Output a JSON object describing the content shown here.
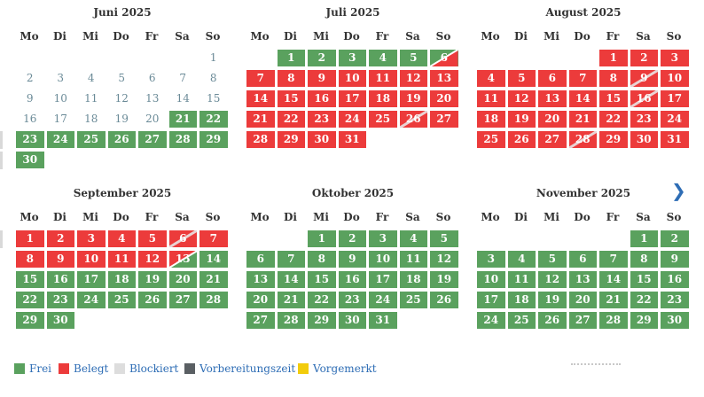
{
  "weekdays": [
    "Mo",
    "Di",
    "Mi",
    "Do",
    "Fr",
    "Sa",
    "So"
  ],
  "colors": {
    "frei": "#5aa15e",
    "belegt": "#ec3b3b",
    "blockiert": "#dddddd",
    "vorbereitungszeit": "#5a5f63",
    "vorgemerkt": "#f2cc0c"
  },
  "next_arrow": "❯",
  "months": [
    {
      "title": "Juni 2025",
      "first_weekday": 6,
      "days": [
        {
          "d": 1,
          "s": "past"
        },
        {
          "d": 2,
          "s": "past"
        },
        {
          "d": 3,
          "s": "past"
        },
        {
          "d": 4,
          "s": "past"
        },
        {
          "d": 5,
          "s": "past"
        },
        {
          "d": 6,
          "s": "past"
        },
        {
          "d": 7,
          "s": "past"
        },
        {
          "d": 8,
          "s": "past"
        },
        {
          "d": 9,
          "s": "past"
        },
        {
          "d": 10,
          "s": "past"
        },
        {
          "d": 11,
          "s": "past"
        },
        {
          "d": 12,
          "s": "past"
        },
        {
          "d": 13,
          "s": "past"
        },
        {
          "d": 14,
          "s": "past"
        },
        {
          "d": 15,
          "s": "past"
        },
        {
          "d": 16,
          "s": "past"
        },
        {
          "d": 17,
          "s": "past"
        },
        {
          "d": 18,
          "s": "past"
        },
        {
          "d": 19,
          "s": "past"
        },
        {
          "d": 20,
          "s": "past"
        },
        {
          "d": 21,
          "s": "frei"
        },
        {
          "d": 22,
          "s": "frei"
        },
        {
          "d": 23,
          "s": "frei"
        },
        {
          "d": 24,
          "s": "frei"
        },
        {
          "d": 25,
          "s": "frei"
        },
        {
          "d": 26,
          "s": "frei"
        },
        {
          "d": 27,
          "s": "frei"
        },
        {
          "d": 28,
          "s": "frei"
        },
        {
          "d": 29,
          "s": "frei"
        },
        {
          "d": 30,
          "s": "frei"
        }
      ]
    },
    {
      "title": "Juli 2025",
      "first_weekday": 1,
      "days": [
        {
          "d": 1,
          "s": "frei"
        },
        {
          "d": 2,
          "s": "frei"
        },
        {
          "d": 3,
          "s": "frei"
        },
        {
          "d": 4,
          "s": "frei"
        },
        {
          "d": 5,
          "s": "frei"
        },
        {
          "d": 6,
          "s": "frei-belegt"
        },
        {
          "d": 7,
          "s": "belegt"
        },
        {
          "d": 8,
          "s": "belegt"
        },
        {
          "d": 9,
          "s": "belegt"
        },
        {
          "d": 10,
          "s": "belegt"
        },
        {
          "d": 11,
          "s": "belegt"
        },
        {
          "d": 12,
          "s": "belegt"
        },
        {
          "d": 13,
          "s": "belegt"
        },
        {
          "d": 14,
          "s": "belegt"
        },
        {
          "d": 15,
          "s": "belegt"
        },
        {
          "d": 16,
          "s": "belegt"
        },
        {
          "d": 17,
          "s": "belegt"
        },
        {
          "d": 18,
          "s": "belegt"
        },
        {
          "d": 19,
          "s": "belegt"
        },
        {
          "d": 20,
          "s": "belegt"
        },
        {
          "d": 21,
          "s": "belegt"
        },
        {
          "d": 22,
          "s": "belegt"
        },
        {
          "d": 23,
          "s": "belegt"
        },
        {
          "d": 24,
          "s": "belegt"
        },
        {
          "d": 25,
          "s": "belegt"
        },
        {
          "d": 26,
          "s": "belegt-change"
        },
        {
          "d": 27,
          "s": "belegt"
        },
        {
          "d": 28,
          "s": "belegt"
        },
        {
          "d": 29,
          "s": "belegt"
        },
        {
          "d": 30,
          "s": "belegt"
        },
        {
          "d": 31,
          "s": "belegt"
        }
      ]
    },
    {
      "title": "August 2025",
      "first_weekday": 4,
      "days": [
        {
          "d": 1,
          "s": "belegt"
        },
        {
          "d": 2,
          "s": "belegt"
        },
        {
          "d": 3,
          "s": "belegt"
        },
        {
          "d": 4,
          "s": "belegt"
        },
        {
          "d": 5,
          "s": "belegt"
        },
        {
          "d": 6,
          "s": "belegt"
        },
        {
          "d": 7,
          "s": "belegt"
        },
        {
          "d": 8,
          "s": "belegt"
        },
        {
          "d": 9,
          "s": "belegt-change"
        },
        {
          "d": 10,
          "s": "belegt"
        },
        {
          "d": 11,
          "s": "belegt"
        },
        {
          "d": 12,
          "s": "belegt"
        },
        {
          "d": 13,
          "s": "belegt"
        },
        {
          "d": 14,
          "s": "belegt"
        },
        {
          "d": 15,
          "s": "belegt"
        },
        {
          "d": 16,
          "s": "belegt-change"
        },
        {
          "d": 17,
          "s": "belegt"
        },
        {
          "d": 18,
          "s": "belegt"
        },
        {
          "d": 19,
          "s": "belegt"
        },
        {
          "d": 20,
          "s": "belegt"
        },
        {
          "d": 21,
          "s": "belegt"
        },
        {
          "d": 22,
          "s": "belegt"
        },
        {
          "d": 23,
          "s": "belegt"
        },
        {
          "d": 24,
          "s": "belegt"
        },
        {
          "d": 25,
          "s": "belegt"
        },
        {
          "d": 26,
          "s": "belegt"
        },
        {
          "d": 27,
          "s": "belegt"
        },
        {
          "d": 28,
          "s": "belegt-change"
        },
        {
          "d": 29,
          "s": "belegt"
        },
        {
          "d": 30,
          "s": "belegt"
        },
        {
          "d": 31,
          "s": "belegt"
        }
      ]
    },
    {
      "title": "September 2025",
      "first_weekday": 0,
      "days": [
        {
          "d": 1,
          "s": "belegt"
        },
        {
          "d": 2,
          "s": "belegt"
        },
        {
          "d": 3,
          "s": "belegt"
        },
        {
          "d": 4,
          "s": "belegt"
        },
        {
          "d": 5,
          "s": "belegt"
        },
        {
          "d": 6,
          "s": "belegt-change"
        },
        {
          "d": 7,
          "s": "belegt"
        },
        {
          "d": 8,
          "s": "belegt"
        },
        {
          "d": 9,
          "s": "belegt"
        },
        {
          "d": 10,
          "s": "belegt"
        },
        {
          "d": 11,
          "s": "belegt"
        },
        {
          "d": 12,
          "s": "belegt"
        },
        {
          "d": 13,
          "s": "belegt-frei"
        },
        {
          "d": 14,
          "s": "frei"
        },
        {
          "d": 15,
          "s": "frei"
        },
        {
          "d": 16,
          "s": "frei"
        },
        {
          "d": 17,
          "s": "frei"
        },
        {
          "d": 18,
          "s": "frei"
        },
        {
          "d": 19,
          "s": "frei"
        },
        {
          "d": 20,
          "s": "frei"
        },
        {
          "d": 21,
          "s": "frei"
        },
        {
          "d": 22,
          "s": "frei"
        },
        {
          "d": 23,
          "s": "frei"
        },
        {
          "d": 24,
          "s": "frei"
        },
        {
          "d": 25,
          "s": "frei"
        },
        {
          "d": 26,
          "s": "frei"
        },
        {
          "d": 27,
          "s": "frei"
        },
        {
          "d": 28,
          "s": "frei"
        },
        {
          "d": 29,
          "s": "frei"
        },
        {
          "d": 30,
          "s": "frei"
        }
      ]
    },
    {
      "title": "Oktober 2025",
      "first_weekday": 2,
      "days": [
        {
          "d": 1,
          "s": "frei"
        },
        {
          "d": 2,
          "s": "frei"
        },
        {
          "d": 3,
          "s": "frei"
        },
        {
          "d": 4,
          "s": "frei"
        },
        {
          "d": 5,
          "s": "frei"
        },
        {
          "d": 6,
          "s": "frei"
        },
        {
          "d": 7,
          "s": "frei"
        },
        {
          "d": 8,
          "s": "frei"
        },
        {
          "d": 9,
          "s": "frei"
        },
        {
          "d": 10,
          "s": "frei"
        },
        {
          "d": 11,
          "s": "frei"
        },
        {
          "d": 12,
          "s": "frei"
        },
        {
          "d": 13,
          "s": "frei"
        },
        {
          "d": 14,
          "s": "frei"
        },
        {
          "d": 15,
          "s": "frei"
        },
        {
          "d": 16,
          "s": "frei"
        },
        {
          "d": 17,
          "s": "frei"
        },
        {
          "d": 18,
          "s": "frei"
        },
        {
          "d": 19,
          "s": "frei"
        },
        {
          "d": 20,
          "s": "frei"
        },
        {
          "d": 21,
          "s": "frei"
        },
        {
          "d": 22,
          "s": "frei"
        },
        {
          "d": 23,
          "s": "frei"
        },
        {
          "d": 24,
          "s": "frei"
        },
        {
          "d": 25,
          "s": "frei"
        },
        {
          "d": 26,
          "s": "frei"
        },
        {
          "d": 27,
          "s": "frei"
        },
        {
          "d": 28,
          "s": "frei"
        },
        {
          "d": 29,
          "s": "frei"
        },
        {
          "d": 30,
          "s": "frei"
        },
        {
          "d": 31,
          "s": "frei"
        }
      ]
    },
    {
      "title": "November 2025",
      "first_weekday": 5,
      "days": [
        {
          "d": 1,
          "s": "frei"
        },
        {
          "d": 2,
          "s": "frei"
        },
        {
          "d": 3,
          "s": "frei"
        },
        {
          "d": 4,
          "s": "frei"
        },
        {
          "d": 5,
          "s": "frei"
        },
        {
          "d": 6,
          "s": "frei"
        },
        {
          "d": 7,
          "s": "frei"
        },
        {
          "d": 8,
          "s": "frei"
        },
        {
          "d": 9,
          "s": "frei"
        },
        {
          "d": 10,
          "s": "frei"
        },
        {
          "d": 11,
          "s": "frei"
        },
        {
          "d": 12,
          "s": "frei"
        },
        {
          "d": 13,
          "s": "frei"
        },
        {
          "d": 14,
          "s": "frei"
        },
        {
          "d": 15,
          "s": "frei"
        },
        {
          "d": 16,
          "s": "frei"
        },
        {
          "d": 17,
          "s": "frei"
        },
        {
          "d": 18,
          "s": "frei"
        },
        {
          "d": 19,
          "s": "frei"
        },
        {
          "d": 20,
          "s": "frei"
        },
        {
          "d": 21,
          "s": "frei"
        },
        {
          "d": 22,
          "s": "frei"
        },
        {
          "d": 23,
          "s": "frei"
        },
        {
          "d": 24,
          "s": "frei"
        },
        {
          "d": 25,
          "s": "frei"
        },
        {
          "d": 26,
          "s": "frei"
        },
        {
          "d": 27,
          "s": "frei"
        },
        {
          "d": 28,
          "s": "frei"
        },
        {
          "d": 29,
          "s": "frei"
        },
        {
          "d": 30,
          "s": "frei"
        }
      ]
    }
  ],
  "legend": [
    {
      "key": "frei",
      "label": "Frei"
    },
    {
      "key": "belegt",
      "label": "Belegt"
    },
    {
      "key": "blockiert",
      "label": "Blockiert"
    },
    {
      "key": "vorbereitungszeit",
      "label": "Vorbereitungszeit"
    },
    {
      "key": "vorgemerkt",
      "label": "Vorgemerkt"
    }
  ]
}
